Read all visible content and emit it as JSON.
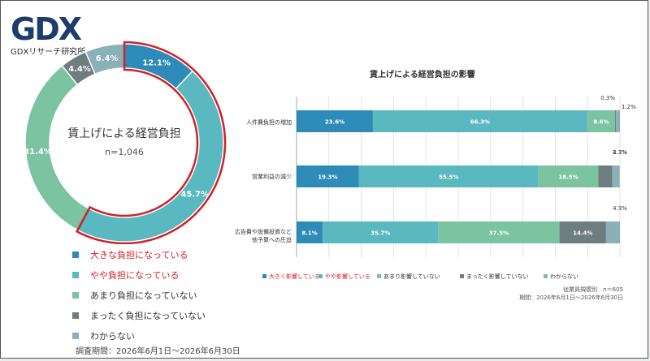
{
  "brand": {
    "logo_text": "GDX",
    "subtitle": "GDXリサーチ研究所"
  },
  "donut": {
    "center_title": "賃上げによる経営負担",
    "center_n": "n=1,046",
    "period": "調査期間：2026年6月1日〜2026年6月30日"
  },
  "bar_chart": {
    "title": "賃上げによる経営負担の影響",
    "sample": "従業員規模別　n＝605",
    "period": "期間：2026年6月1日〜2026年6月30日",
    "categories_display": [
      {
        "line1": "人件費負担の増加",
        "line2": ""
      },
      {
        "line1": "営業利益の減少",
        "line2": ""
      },
      {
        "line1": "広告費や設備投資など",
        "line2": "他予算への圧迫"
      }
    ]
  },
  "colors": {
    "dark_blue": "#2e8bb8",
    "teal": "#5ab8c0",
    "light_green": "#7bc3a1",
    "gray": "#6e7d7f",
    "light_blue_gray": "#8ab0b8",
    "highlight_red": "#d31f26"
  },
  "chart_data": [
    {
      "type": "pie",
      "title": "賃上げによる経営負担",
      "labels": [
        "大きな負担になっている",
        "やや負担になっている",
        "あまり負担になっていない",
        "まったく負担になっていない",
        "わからない"
      ],
      "values": [
        12.1,
        45.7,
        31.4,
        4.4,
        6.4
      ],
      "value_labels": [
        "12.1%",
        "45.7%",
        "31.4%",
        "4.4%",
        "6.4%"
      ],
      "colors": [
        "#2e8bb8",
        "#5ab8c0",
        "#7bc3a1",
        "#6e7d7f",
        "#8ab0b8"
      ],
      "highlighted": [
        true,
        true,
        false,
        false,
        false
      ],
      "legend_position": "bottom-left"
    },
    {
      "type": "bar",
      "orientation": "horizontal",
      "stacked": true,
      "title": "賃上げによる経営負担の影響",
      "categories": [
        "人件費負担の増加",
        "営業利益の減少",
        "広告費や設備投資など他予算への圧迫"
      ],
      "series": [
        {
          "name": "大きく影響している",
          "values": [
            23.6,
            19.3,
            8.1
          ],
          "labels": [
            "23.6%",
            "19.3%",
            "8.1%"
          ],
          "color": "#2e8bb8"
        },
        {
          "name": "やや影響している",
          "values": [
            66.3,
            55.5,
            35.7
          ],
          "labels": [
            "66.3%",
            "55.5%",
            "35.7%"
          ],
          "color": "#5ab8c0"
        },
        {
          "name": "あまり影響していない",
          "values": [
            8.6,
            18.5,
            37.5
          ],
          "labels": [
            "8.6%",
            "18.5%",
            "37.5%"
          ],
          "color": "#7bc3a1"
        },
        {
          "name": "まったく影響していない",
          "values": [
            0.3,
            4.3,
            14.4
          ],
          "labels": [
            "0.3%",
            "4.3%",
            "14.4%"
          ],
          "color": "#6e7d7f"
        },
        {
          "name": "わからない",
          "values": [
            1.2,
            2.3,
            4.3
          ],
          "labels": [
            "1.2%",
            "2.3%",
            "4.3%"
          ],
          "color": "#8ab0b8"
        }
      ],
      "xlim": [
        0,
        100
      ],
      "grid": true,
      "legend_position": "bottom"
    }
  ]
}
